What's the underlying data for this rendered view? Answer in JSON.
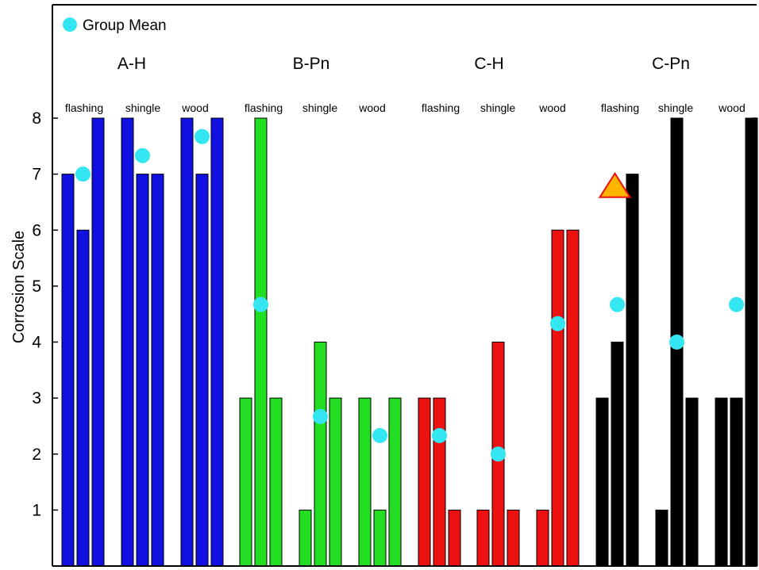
{
  "chart_data": {
    "type": "bar",
    "ylabel": "Corrosion Scale",
    "ylim": [
      0,
      8
    ],
    "yticks": [
      "1",
      "2",
      "3",
      "4",
      "5",
      "6",
      "7",
      "8"
    ],
    "legend": {
      "label": "Group Mean",
      "marker_color": "#33e6f2",
      "position": "top-left"
    },
    "treatments": [
      {
        "name": "A-H",
        "color": "#1010e0",
        "groups": [
          {
            "name": "flashing",
            "values": [
              7,
              6,
              8
            ],
            "mean": 7.0
          },
          {
            "name": "shingle",
            "values": [
              8,
              7,
              7
            ],
            "mean": 7.33
          },
          {
            "name": "wood",
            "values": [
              8,
              7,
              8
            ],
            "mean": 7.67
          }
        ]
      },
      {
        "name": "B-Pn",
        "color": "#22dd22",
        "groups": [
          {
            "name": "flashing",
            "values": [
              3,
              8,
              3
            ],
            "mean": 4.67
          },
          {
            "name": "shingle",
            "values": [
              1,
              4,
              3
            ],
            "mean": 2.67
          },
          {
            "name": "wood",
            "values": [
              3,
              1,
              3
            ],
            "mean": 2.33
          }
        ]
      },
      {
        "name": "C-H",
        "color": "#ee1111",
        "groups": [
          {
            "name": "flashing",
            "values": [
              3,
              3,
              1
            ],
            "mean": 2.33
          },
          {
            "name": "shingle",
            "values": [
              1,
              4,
              1
            ],
            "mean": 2.0
          },
          {
            "name": "wood",
            "values": [
              1,
              6,
              6
            ],
            "mean": 4.33
          }
        ]
      },
      {
        "name": "C-Pn",
        "color": "#000000",
        "groups": [
          {
            "name": "flashing",
            "values": [
              3,
              4,
              7
            ],
            "mean": 4.67
          },
          {
            "name": "shingle",
            "values": [
              1,
              8,
              3
            ],
            "mean": 4.0
          },
          {
            "name": "wood",
            "values": [
              3,
              3,
              8
            ],
            "mean": 4.67
          }
        ]
      }
    ],
    "annotations": [
      {
        "type": "triangle",
        "treatment": "C-Pn",
        "group": "flashing",
        "y": 6.8,
        "fill": "#ffb400",
        "stroke": "#ee1111"
      }
    ],
    "grid": false
  }
}
